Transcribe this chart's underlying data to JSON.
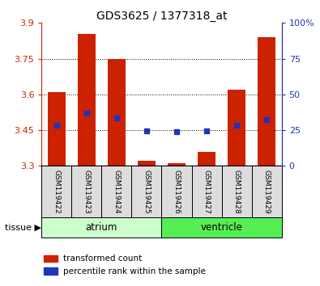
{
  "title": "GDS3625 / 1377318_at",
  "samples": [
    "GSM119422",
    "GSM119423",
    "GSM119424",
    "GSM119425",
    "GSM119426",
    "GSM119427",
    "GSM119428",
    "GSM119429"
  ],
  "bar_bottom": 3.3,
  "bar_tops": [
    3.61,
    3.855,
    3.75,
    3.32,
    3.31,
    3.36,
    3.62,
    3.84
  ],
  "blue_y": [
    3.47,
    3.52,
    3.5,
    3.447,
    3.443,
    3.447,
    3.472,
    3.493
  ],
  "ylim": [
    3.3,
    3.9
  ],
  "yticks_left": [
    3.3,
    3.45,
    3.6,
    3.75,
    3.9
  ],
  "yticks_right": [
    0,
    25,
    50,
    75,
    100
  ],
  "grid_yticks": [
    3.45,
    3.6,
    3.75
  ],
  "bar_color": "#cc2200",
  "blue_color": "#2233bb",
  "tissue_groups": [
    {
      "label": "atrium",
      "samples": [
        0,
        1,
        2,
        3
      ],
      "color": "#ccffcc",
      "edge": "#44aa44"
    },
    {
      "label": "ventricle",
      "samples": [
        4,
        5,
        6,
        7
      ],
      "color": "#55ee55",
      "edge": "#44aa44"
    }
  ],
  "bar_width": 0.6,
  "blue_marker_size": 4
}
